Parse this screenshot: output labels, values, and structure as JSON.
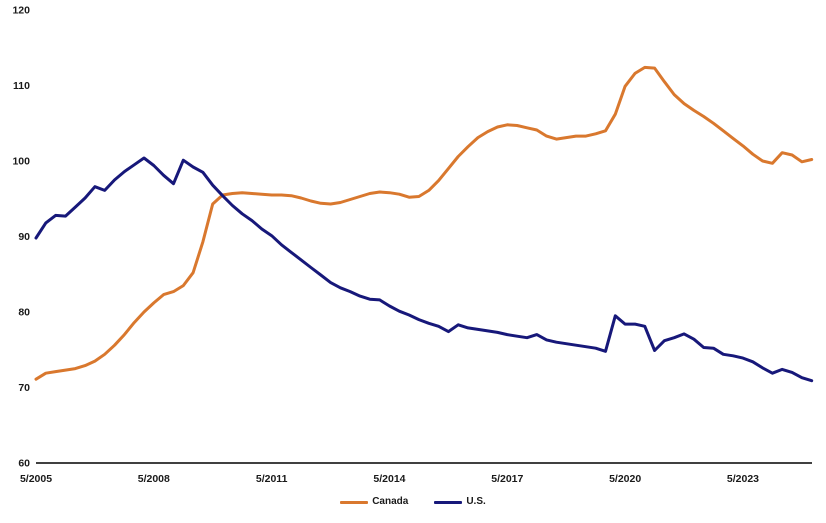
{
  "chart_data": {
    "type": "line",
    "title": "",
    "xlabel": "",
    "ylabel": "",
    "grid": false,
    "legend_position": "bottom-center",
    "ylim": [
      60,
      120
    ],
    "y_ticks": [
      120,
      110,
      100,
      90,
      80,
      70,
      60
    ],
    "x_unit": "quarterly from 5/2005",
    "x_tick_labels": [
      "5/2005",
      "5/2008",
      "5/2011",
      "5/2014",
      "5/2017",
      "5/2020",
      "5/2023"
    ],
    "x_tick_positions": [
      0,
      12,
      24,
      36,
      48,
      60,
      72
    ],
    "series": [
      {
        "name": "Canada",
        "color": "#D9782E",
        "values": [
          71.1,
          71.9,
          72.1,
          72.3,
          72.5,
          72.9,
          73.5,
          74.4,
          75.6,
          77.0,
          78.6,
          80.0,
          81.2,
          82.3,
          82.7,
          83.5,
          85.2,
          89.3,
          94.3,
          95.5,
          95.7,
          95.8,
          95.7,
          95.6,
          95.5,
          95.5,
          95.4,
          95.1,
          94.7,
          94.4,
          94.3,
          94.5,
          94.9,
          95.3,
          95.7,
          95.9,
          95.8,
          95.6,
          95.2,
          95.3,
          96.1,
          97.4,
          99.0,
          100.6,
          101.9,
          103.1,
          103.9,
          104.5,
          104.8,
          104.7,
          104.4,
          104.1,
          103.3,
          102.9,
          103.1,
          103.3,
          103.3,
          103.6,
          104.0,
          106.2,
          109.9,
          111.6,
          112.4,
          112.3,
          110.5,
          108.8,
          107.6,
          106.7,
          105.9,
          105.0,
          104.0,
          103.0,
          102.0,
          100.9,
          100.0,
          99.7,
          101.1,
          100.8,
          99.9,
          100.2
        ]
      },
      {
        "name": "U.S.",
        "color": "#17187A",
        "values": [
          89.8,
          91.8,
          92.8,
          92.7,
          93.9,
          95.1,
          96.6,
          96.1,
          97.5,
          98.6,
          99.5,
          100.4,
          99.4,
          98.1,
          97.0,
          100.1,
          99.2,
          98.5,
          96.8,
          95.4,
          94.1,
          93.0,
          92.1,
          91.0,
          90.1,
          88.9,
          87.9,
          86.9,
          85.9,
          84.9,
          83.9,
          83.2,
          82.7,
          82.1,
          81.7,
          81.6,
          80.8,
          80.1,
          79.6,
          79.0,
          78.5,
          78.1,
          77.4,
          78.3,
          77.9,
          77.7,
          77.5,
          77.3,
          77.0,
          76.8,
          76.6,
          77.0,
          76.3,
          76.0,
          75.8,
          75.6,
          75.4,
          75.2,
          74.8,
          79.5,
          78.4,
          78.4,
          78.1,
          74.9,
          76.2,
          76.6,
          77.1,
          76.4,
          75.3,
          75.2,
          74.4,
          74.2,
          73.9,
          73.4,
          72.6,
          71.9,
          72.4,
          72.0,
          71.3,
          70.9
        ]
      }
    ]
  },
  "legend": {
    "canada_label": "Canada",
    "us_label": "U.S."
  },
  "colors": {
    "axis": "#000000",
    "text": "#1a1a1a",
    "canada": "#D9782E",
    "us": "#17187A"
  }
}
